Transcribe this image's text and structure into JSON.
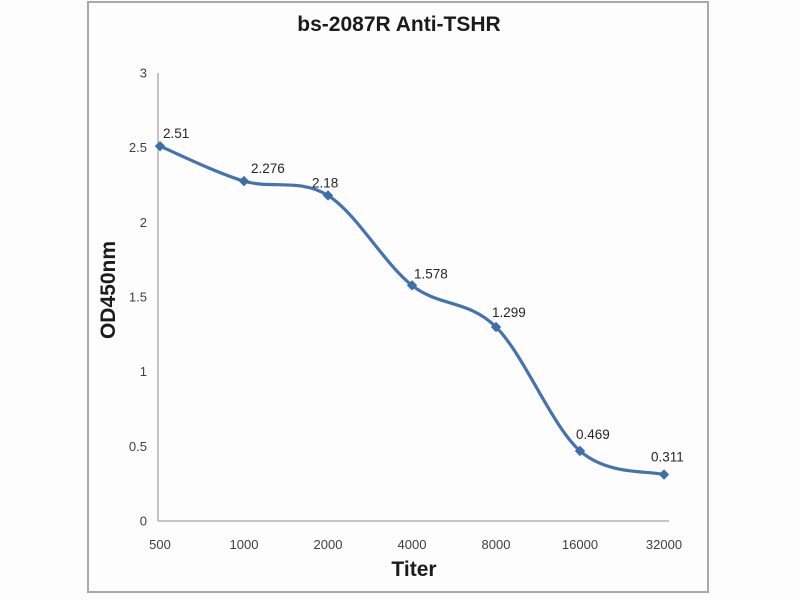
{
  "figure": {
    "background": "#fcfcfc",
    "frame_border_color": "#a9a9a9",
    "frame_fill": "#fdfdfd"
  },
  "chart_data": {
    "type": "line",
    "title": "bs-2087R Anti-TSHR",
    "xlabel": "Titer",
    "ylabel": "OD450nm",
    "categories": [
      "500",
      "1000",
      "2000",
      "4000",
      "8000",
      "16000",
      "32000"
    ],
    "values": [
      2.51,
      2.276,
      2.18,
      1.578,
      1.299,
      0.469,
      0.311
    ],
    "point_labels": [
      "2.51",
      "2.276",
      "2.18",
      "1.578",
      "1.299",
      "0.469",
      "0.311"
    ],
    "y_ticks": [
      "3",
      "2.5",
      "2",
      "1.5",
      "1",
      "0.5",
      "0"
    ],
    "y_tick_values": [
      3,
      2.5,
      2,
      1.5,
      1,
      0.5,
      0
    ],
    "ylim": [
      0,
      3
    ],
    "grid": false,
    "legend": "none",
    "line_color": "#4473ad",
    "marker_color": "#3e6da8",
    "axis_color": "#a6a6a6",
    "tick_color": "#3f3f3f"
  }
}
